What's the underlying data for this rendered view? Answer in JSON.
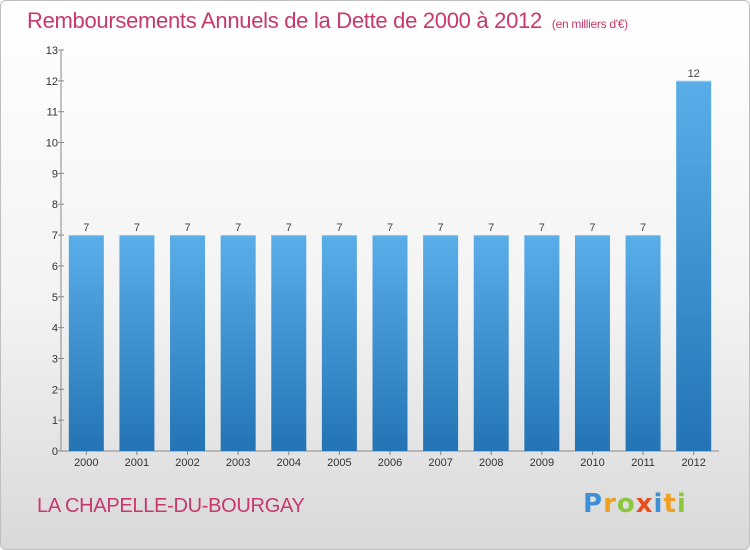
{
  "header": {
    "title": "Remboursements Annuels de la Dette de 2000 à 2012",
    "unit": "(en milliers d'€)"
  },
  "footer": {
    "place": "LA CHAPELLE-DU-BOURGAY",
    "logo": "Proxiti"
  },
  "colors": {
    "title": "#c8386b",
    "bar_light": "#5aaee8",
    "bar_dark": "#2474b5"
  },
  "chart_data": {
    "type": "bar",
    "title": "Remboursements Annuels de la Dette de 2000 à 2012",
    "categories": [
      "2000",
      "2001",
      "2002",
      "2003",
      "2004",
      "2005",
      "2006",
      "2007",
      "2008",
      "2009",
      "2010",
      "2011",
      "2012"
    ],
    "values": [
      7,
      7,
      7,
      7,
      7,
      7,
      7,
      7,
      7,
      7,
      7,
      7,
      12
    ],
    "y_ticks": [
      0,
      1,
      2,
      3,
      4,
      5,
      6,
      7,
      8,
      9,
      10,
      11,
      12,
      13
    ],
    "ylim": [
      0,
      13
    ],
    "grid": false,
    "data_labels": true
  }
}
